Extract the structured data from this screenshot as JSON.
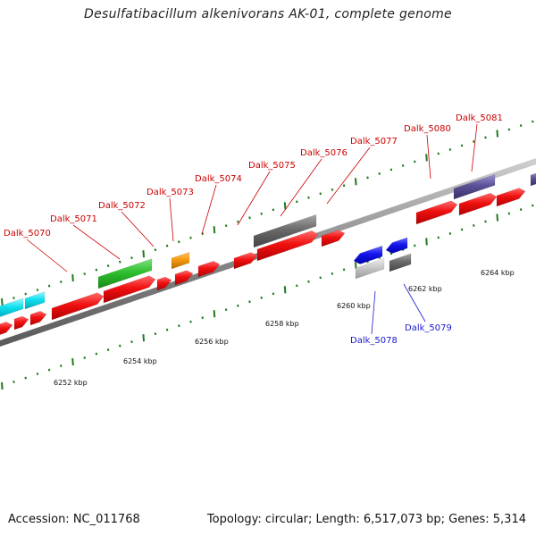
{
  "title": "Desulfatibacillum alkenivorans AK-01, complete genome",
  "footer": {
    "accession": "Accession: NC_011768",
    "summary": "Topology: circular; Length: 6,517,073 bp; Genes: 5,314"
  },
  "colors": {
    "forward_label": "#cc0000",
    "reverse_label": "#1a1acc",
    "backbone": "#8a8a8a",
    "tick": "#1e7a1e"
  },
  "scale_labels": [
    "6252 kbp",
    "6254 kbp",
    "6256 kbp",
    "6258 kbp",
    "6260 kbp",
    "6262 kbp",
    "6264 kbp"
  ],
  "gene_labels": [
    {
      "text": "Dalk_5070",
      "strand": "forward"
    },
    {
      "text": "Dalk_5071",
      "strand": "forward"
    },
    {
      "text": "Dalk_5072",
      "strand": "forward"
    },
    {
      "text": "Dalk_5073",
      "strand": "forward"
    },
    {
      "text": "Dalk_5074",
      "strand": "forward"
    },
    {
      "text": "Dalk_5075",
      "strand": "forward"
    },
    {
      "text": "Dalk_5076",
      "strand": "forward"
    },
    {
      "text": "Dalk_5077",
      "strand": "forward"
    },
    {
      "text": "Dalk_5080",
      "strand": "forward"
    },
    {
      "text": "Dalk_5081",
      "strand": "forward"
    },
    {
      "text": "Dalk_5078",
      "strand": "reverse"
    },
    {
      "text": "Dalk_5079",
      "strand": "reverse"
    }
  ]
}
